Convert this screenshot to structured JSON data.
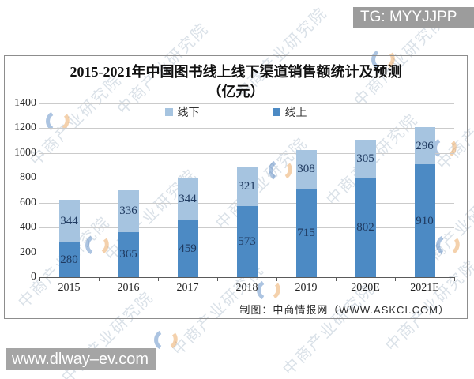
{
  "overlay": {
    "tg_badge": "TG: MYYJJPP",
    "site_badge": "www.dlway–ev.com"
  },
  "watermark": {
    "text": "中商产业研究院",
    "logo_orange": "#e89a4a",
    "logo_blue": "#4a7dbd"
  },
  "chart_data": {
    "type": "bar",
    "stacked": true,
    "title": "2015-2021年中国图书线上线下渠道销售额统计及预测",
    "title_line2": "（亿元）",
    "categories": [
      "2015",
      "2016",
      "2017",
      "2018",
      "2019",
      "2020E",
      "2021E"
    ],
    "series": [
      {
        "name": "线上",
        "color": "#4c8ac4",
        "values": [
          280,
          365,
          459,
          573,
          715,
          802,
          910
        ]
      },
      {
        "name": "线下",
        "color": "#a6c4e0",
        "values": [
          344,
          336,
          344,
          321,
          308,
          305,
          296
        ]
      }
    ],
    "legend_order": [
      "线下",
      "线上"
    ],
    "legend_position": "top",
    "grid": true,
    "ylim": [
      0,
      1400
    ],
    "yticks": [
      0,
      200,
      400,
      600,
      800,
      1000,
      1200,
      1400
    ],
    "value_label_color": "#1f3a60",
    "credit": "制图：中商情报网（WWW.ASKCI.COM）"
  }
}
